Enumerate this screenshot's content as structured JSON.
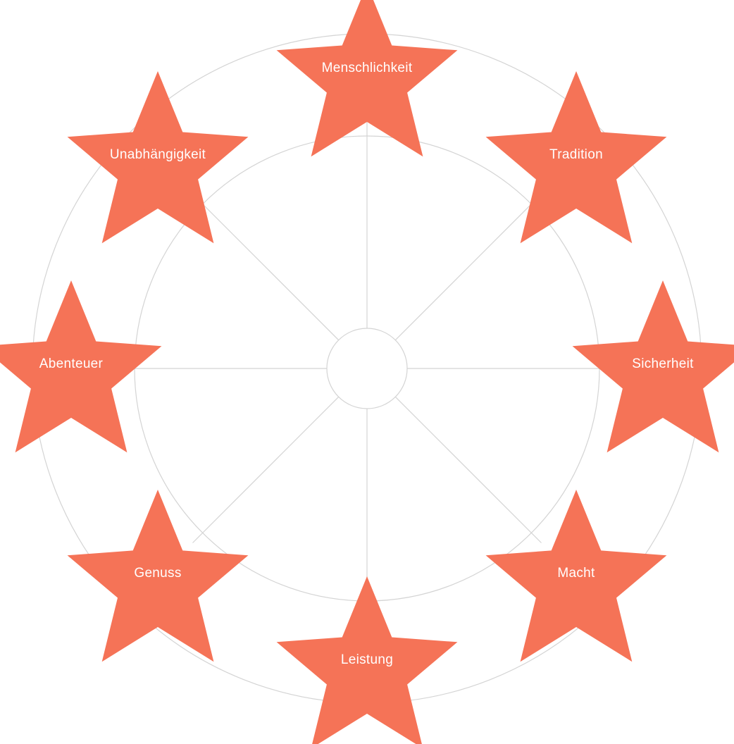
{
  "diagram": {
    "colors": {
      "star_fill": "#f57357",
      "line": "#d4d4d4",
      "background": "#ffffff",
      "label": "#ffffff"
    },
    "values": [
      {
        "id": "menschlichkeit",
        "label": "Menschlichkeit"
      },
      {
        "id": "tradition",
        "label": "Tradition"
      },
      {
        "id": "sicherheit",
        "label": "Sicherheit"
      },
      {
        "id": "macht",
        "label": "Macht"
      },
      {
        "id": "leistung",
        "label": "Leistung"
      },
      {
        "id": "genuss",
        "label": "Genuss"
      },
      {
        "id": "abenteuer",
        "label": "Abenteuer"
      },
      {
        "id": "unabhaengigkeit",
        "label": "Unabhängigkeit"
      }
    ]
  }
}
